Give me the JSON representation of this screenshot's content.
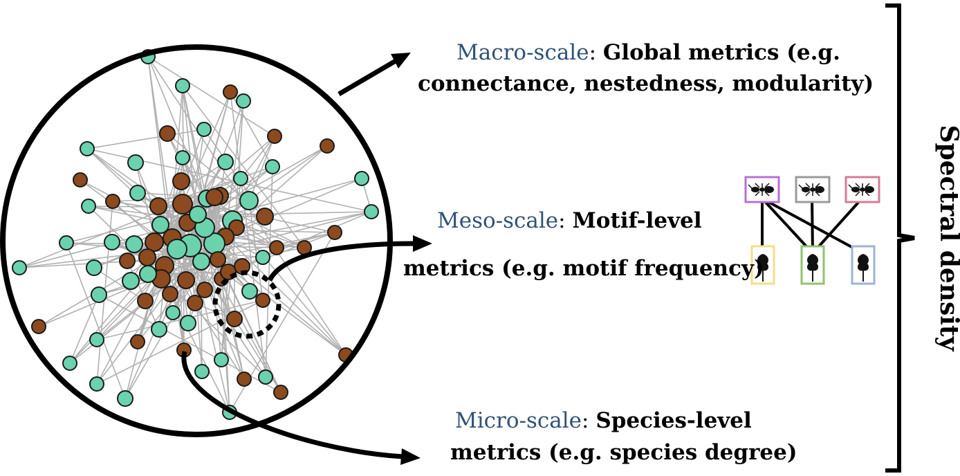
{
  "colors": {
    "plant_node": "#6ad3ad",
    "animal_node": "#8c4a1e",
    "edge": "#b0b0b0",
    "scale_label": "#2e5276",
    "motif_animal_borders": [
      "#b86fd6",
      "#9a9a9a",
      "#d97a94"
    ],
    "motif_plant_borders": [
      "#f1df8a",
      "#8fc36d",
      "#9fb2d7"
    ]
  },
  "icons": {
    "animal": "ant-icon",
    "plant": "plant-icon"
  },
  "labels": {
    "macro": {
      "scale": "Macro-scale",
      "sep": ": ",
      "line1": "Global metrics (e.g.",
      "line2": "connectance, nestedness, modularity)"
    },
    "meso": {
      "scale": "Meso-scale",
      "sep": ": ",
      "line1": "Motif-level",
      "line2": "metrics (e.g. motif frequency)"
    },
    "micro": {
      "scale": "Micro-scale",
      "sep": ": ",
      "line1": "Species-level",
      "line2": "metrics (e.g. species degree)"
    },
    "spectral": "Spectral density"
  }
}
